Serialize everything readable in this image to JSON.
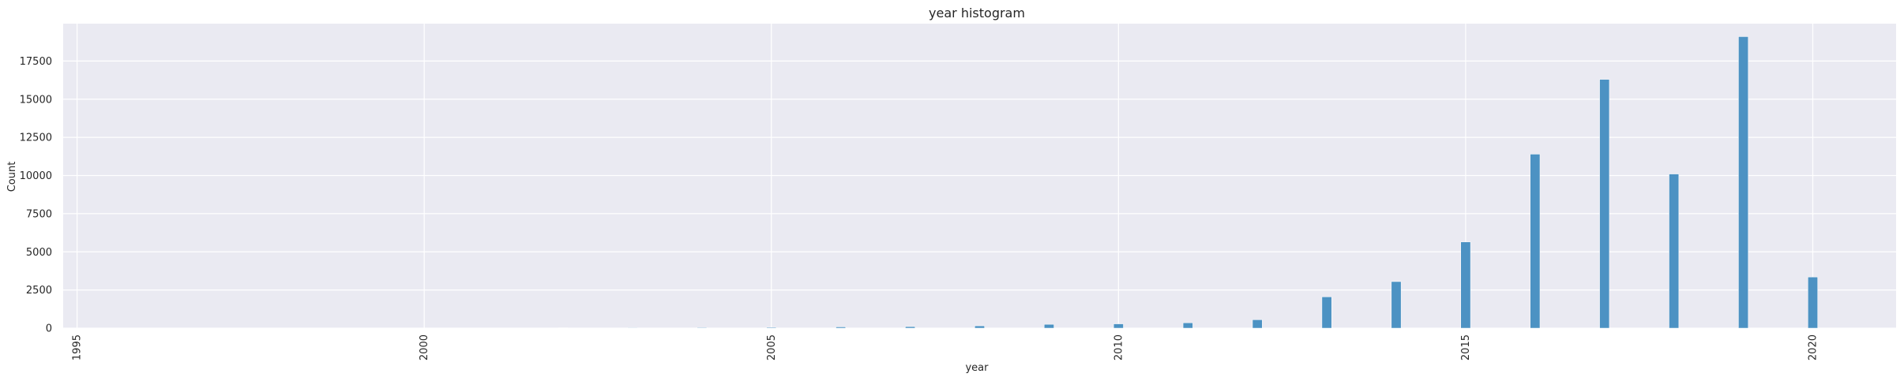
{
  "chart_data": {
    "type": "bar",
    "title": "year histogram",
    "xlabel": "year",
    "ylabel": "Count",
    "xlim": [
      1994.8,
      2021.2
    ],
    "ylim": [
      0,
      19950
    ],
    "xticks": [
      1995,
      2000,
      2005,
      2010,
      2015,
      2020
    ],
    "yticks": [
      0,
      2500,
      5000,
      7500,
      10000,
      12500,
      15000,
      17500
    ],
    "bar_width_years": 0.14,
    "grid": true,
    "legend": "none",
    "bar_color": "#4c92c3",
    "background_color": "#eaeaf2",
    "grid_color": "#ffffff",
    "series": [
      {
        "x": [
          1995,
          1996,
          1997,
          1998,
          1999,
          2000,
          2001,
          2002,
          2003,
          2004,
          2005,
          2006,
          2007,
          2008,
          2009,
          2010,
          2011,
          2012,
          2013,
          2014,
          2015,
          2016,
          2017,
          2018,
          2019,
          2020
        ],
        "values": [
          0,
          0,
          0,
          0,
          0,
          0,
          0,
          20,
          30,
          40,
          50,
          80,
          100,
          150,
          250,
          280,
          350,
          550,
          2050,
          3050,
          5650,
          11400,
          16300,
          10100,
          19100,
          3350
        ]
      }
    ]
  }
}
